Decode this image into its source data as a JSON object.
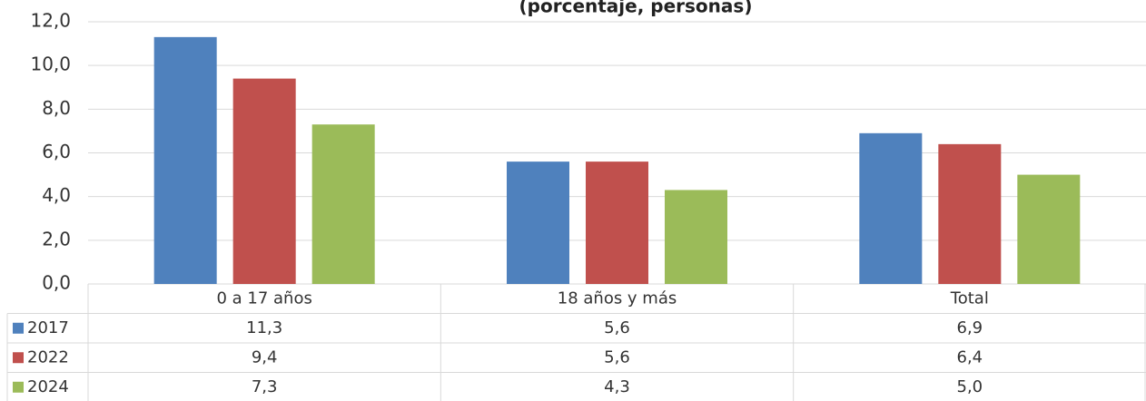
{
  "chart_data": {
    "type": "bar",
    "title": "(porcentaje, personas)",
    "categories": [
      "0 a 17 años",
      "18 años y más",
      "Total"
    ],
    "series": [
      {
        "name": "2017",
        "color": "#4f81bd",
        "values": [
          11.3,
          5.6,
          6.9
        ],
        "value_labels": [
          "11,3",
          "5,6",
          "6,9"
        ]
      },
      {
        "name": "2022",
        "color": "#c0504d",
        "values": [
          9.4,
          5.6,
          6.4
        ],
        "value_labels": [
          "9,4",
          "5,6",
          "6,4"
        ]
      },
      {
        "name": "2024",
        "color": "#9bbb59",
        "values": [
          7.3,
          4.3,
          5.0
        ],
        "value_labels": [
          "7,3",
          "4,3",
          "5,0"
        ]
      }
    ],
    "ylim": [
      0,
      12
    ],
    "yticks": [
      {
        "value": 0,
        "label": "0,0"
      },
      {
        "value": 2,
        "label": "2,0"
      },
      {
        "value": 4,
        "label": "4,0"
      },
      {
        "value": 6,
        "label": "6,0"
      },
      {
        "value": 8,
        "label": "8,0"
      },
      {
        "value": 10,
        "label": "10,0"
      },
      {
        "value": 12,
        "label": "12,0"
      }
    ],
    "grid": true
  }
}
